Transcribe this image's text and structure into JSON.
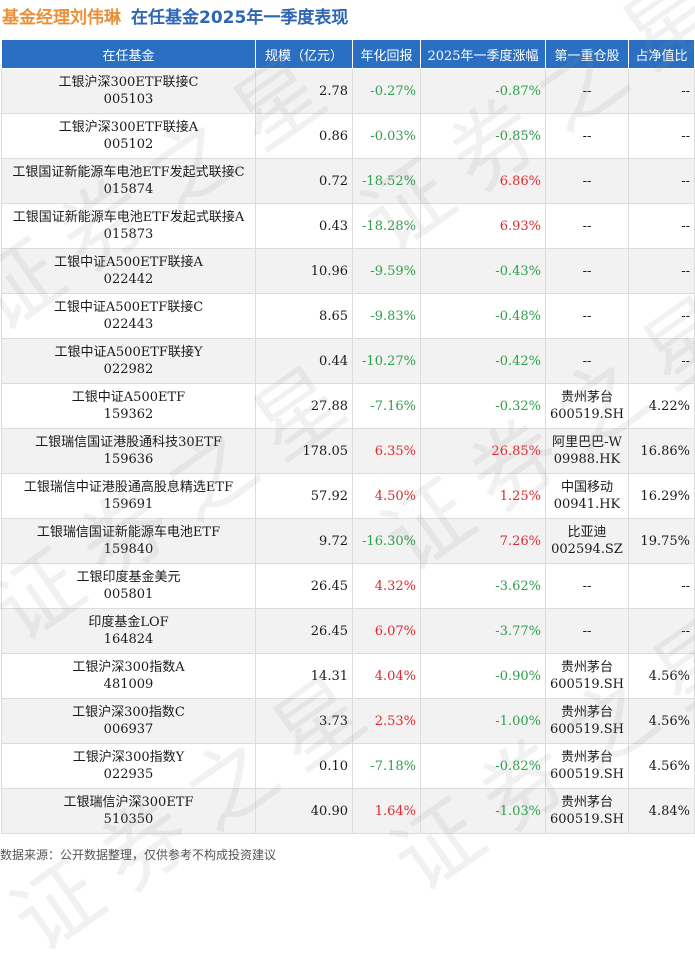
{
  "header": {
    "manager": "基金经理刘伟琳",
    "subject": "在任基金2025年一季度表现"
  },
  "columns": [
    "在任基金",
    "规模（亿元）",
    "年化回报",
    "2025年一季度涨幅",
    "第一重仓股",
    "占净值比"
  ],
  "rows": [
    {
      "name": "工银沪深300ETF联接C",
      "code": "005103",
      "scale": "2.78",
      "annual": "-0.27%",
      "annual_dir": "down",
      "q1": "-0.87%",
      "q1_dir": "down",
      "holding": "--",
      "holding_code": "",
      "ratio": "--"
    },
    {
      "name": "工银沪深300ETF联接A",
      "code": "005102",
      "scale": "0.86",
      "annual": "-0.03%",
      "annual_dir": "down",
      "q1": "-0.85%",
      "q1_dir": "down",
      "holding": "--",
      "holding_code": "",
      "ratio": "--"
    },
    {
      "name": "工银国证新能源车电池ETF发起式联接C",
      "code": "015874",
      "scale": "0.72",
      "annual": "-18.52%",
      "annual_dir": "down",
      "q1": "6.86%",
      "q1_dir": "up",
      "holding": "--",
      "holding_code": "",
      "ratio": "--"
    },
    {
      "name": "工银国证新能源车电池ETF发起式联接A",
      "code": "015873",
      "scale": "0.43",
      "annual": "-18.28%",
      "annual_dir": "down",
      "q1": "6.93%",
      "q1_dir": "up",
      "holding": "--",
      "holding_code": "",
      "ratio": "--"
    },
    {
      "name": "工银中证A500ETF联接A",
      "code": "022442",
      "scale": "10.96",
      "annual": "-9.59%",
      "annual_dir": "down",
      "q1": "-0.43%",
      "q1_dir": "down",
      "holding": "--",
      "holding_code": "",
      "ratio": "--"
    },
    {
      "name": "工银中证A500ETF联接C",
      "code": "022443",
      "scale": "8.65",
      "annual": "-9.83%",
      "annual_dir": "down",
      "q1": "-0.48%",
      "q1_dir": "down",
      "holding": "--",
      "holding_code": "",
      "ratio": "--"
    },
    {
      "name": "工银中证A500ETF联接Y",
      "code": "022982",
      "scale": "0.44",
      "annual": "-10.27%",
      "annual_dir": "down",
      "q1": "-0.42%",
      "q1_dir": "down",
      "holding": "--",
      "holding_code": "",
      "ratio": "--"
    },
    {
      "name": "工银中证A500ETF",
      "code": "159362",
      "scale": "27.88",
      "annual": "-7.16%",
      "annual_dir": "down",
      "q1": "-0.32%",
      "q1_dir": "down",
      "holding": "贵州茅台",
      "holding_code": "600519.SH",
      "ratio": "4.22%"
    },
    {
      "name": "工银瑞信国证港股通科技30ETF",
      "code": "159636",
      "scale": "178.05",
      "annual": "6.35%",
      "annual_dir": "up",
      "q1": "26.85%",
      "q1_dir": "up",
      "holding": "阿里巴巴-W",
      "holding_code": "09988.HK",
      "ratio": "16.86%"
    },
    {
      "name": "工银瑞信中证港股通高股息精选ETF",
      "code": "159691",
      "scale": "57.92",
      "annual": "4.50%",
      "annual_dir": "up",
      "q1": "1.25%",
      "q1_dir": "up",
      "holding": "中国移动",
      "holding_code": "00941.HK",
      "ratio": "16.29%"
    },
    {
      "name": "工银瑞信国证新能源车电池ETF",
      "code": "159840",
      "scale": "9.72",
      "annual": "-16.30%",
      "annual_dir": "down",
      "q1": "7.26%",
      "q1_dir": "up",
      "holding": "比亚迪",
      "holding_code": "002594.SZ",
      "ratio": "19.75%"
    },
    {
      "name": "工银印度基金美元",
      "code": "005801",
      "scale": "26.45",
      "annual": "4.32%",
      "annual_dir": "up",
      "q1": "-3.62%",
      "q1_dir": "down",
      "holding": "--",
      "holding_code": "",
      "ratio": "--"
    },
    {
      "name": "印度基金LOF",
      "code": "164824",
      "scale": "26.45",
      "annual": "6.07%",
      "annual_dir": "up",
      "q1": "-3.77%",
      "q1_dir": "down",
      "holding": "--",
      "holding_code": "",
      "ratio": "--"
    },
    {
      "name": "工银沪深300指数A",
      "code": "481009",
      "scale": "14.31",
      "annual": "4.04%",
      "annual_dir": "up",
      "q1": "-0.90%",
      "q1_dir": "down",
      "holding": "贵州茅台",
      "holding_code": "600519.SH",
      "ratio": "4.56%"
    },
    {
      "name": "工银沪深300指数C",
      "code": "006937",
      "scale": "3.73",
      "annual": "2.53%",
      "annual_dir": "up",
      "q1": "-1.00%",
      "q1_dir": "down",
      "holding": "贵州茅台",
      "holding_code": "600519.SH",
      "ratio": "4.56%"
    },
    {
      "name": "工银沪深300指数Y",
      "code": "022935",
      "scale": "0.10",
      "annual": "-7.18%",
      "annual_dir": "down",
      "q1": "-0.82%",
      "q1_dir": "down",
      "holding": "贵州茅台",
      "holding_code": "600519.SH",
      "ratio": "4.56%"
    },
    {
      "name": "工银瑞信沪深300ETF",
      "code": "510350",
      "scale": "40.90",
      "annual": "1.64%",
      "annual_dir": "up",
      "q1": "-1.03%",
      "q1_dir": "down",
      "holding": "贵州茅台",
      "holding_code": "600519.SH",
      "ratio": "4.84%"
    }
  ],
  "colors": {
    "up": "#e0282e",
    "down": "#2f9e4c",
    "header_bg": "#2a6fc2",
    "manager": "#e8913a",
    "subject": "#2e66b5"
  },
  "watermark": "证券之星",
  "footer": "数据来源：公开数据整理，仅供参考不构成投资建议"
}
